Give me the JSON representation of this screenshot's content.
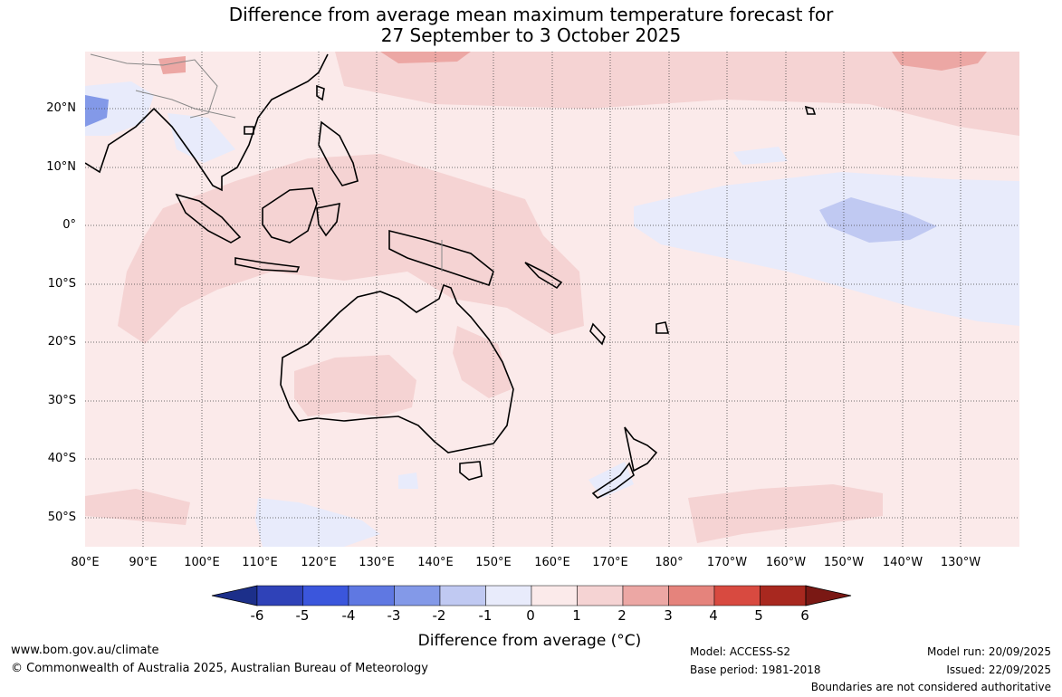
{
  "title": {
    "line1": "Difference from average mean maximum temperature forecast for",
    "line2": "27 September to 3 October 2025"
  },
  "lat_labels": [
    "20°N",
    "10°N",
    "0°",
    "10°S",
    "20°S",
    "30°S",
    "40°S",
    "50°S"
  ],
  "lon_labels": [
    "80°E",
    "90°E",
    "100°E",
    "110°E",
    "120°E",
    "130°E",
    "140°E",
    "150°E",
    "160°E",
    "170°E",
    "180°",
    "170°W",
    "160°W",
    "150°W",
    "140°W",
    "130°W"
  ],
  "colorbar": {
    "ticks": [
      "-6",
      "-5",
      "-4",
      "-3",
      "-2",
      "-1",
      "0",
      "1",
      "2",
      "3",
      "4",
      "5",
      "6"
    ],
    "colors": [
      "#1c2f8a",
      "#2f42b8",
      "#3b56dc",
      "#5f78e2",
      "#8399e8",
      "#c0c9f2",
      "#e8ebfb",
      "#fbeaea",
      "#f5d3d3",
      "#eca7a4",
      "#e5837c",
      "#d84a40",
      "#a8281f",
      "#7a1814"
    ],
    "label": "Difference from average (°C)"
  },
  "footer": {
    "url": "www.bom.gov.au/climate",
    "copyright": "© Commonwealth of Australia 2025, Australian Bureau of Meteorology",
    "model": "Model: ACCESS-S2",
    "base_period": "Base period: 1981-2018",
    "model_run": "Model run: 20/09/2025",
    "issued": "Issued: 22/09/2025",
    "disclaimer": "Boundaries are not considered authoritative"
  }
}
